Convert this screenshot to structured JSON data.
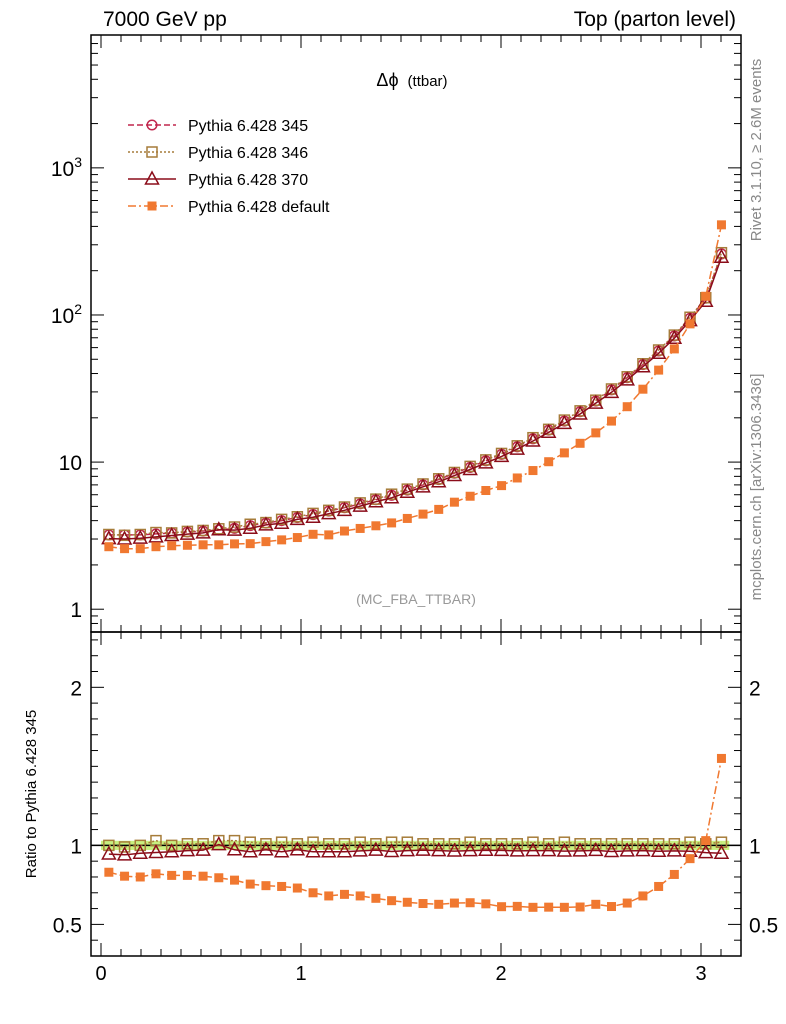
{
  "header": {
    "left": "7000 GeV pp",
    "right": "Top (parton level)"
  },
  "side_text": {
    "top": "Rivet 3.1.10, ≥ 2.6M events",
    "bottom": "mcplots.cern.ch [arXiv:1306.3436]"
  },
  "main_title": {
    "symbol": "Δϕ",
    "text": "(ttbar)"
  },
  "analysis_label": "(MC_FBA_TTBAR)",
  "ratio_ylabel": "Ratio to Pythia 6.428 345",
  "colors": {
    "s345": "#c1264d",
    "s346": "#a67c3a",
    "s370": "#8b0d1a",
    "default": "#f07830",
    "band": "#c8f080"
  },
  "chart_data": [
    {
      "type": "line",
      "log_y": true,
      "ylim": [
        0.7,
        8000
      ],
      "xlim": [
        -0.05,
        3.2
      ],
      "x_ticks": [
        0,
        1,
        2,
        3
      ],
      "y_tick_labels": [
        {
          "v": 1,
          "t": "1"
        },
        {
          "v": 10,
          "t": "10"
        },
        {
          "v": 100,
          "t": "10",
          "sup": "2"
        },
        {
          "v": 1000,
          "t": "10",
          "sup": "3"
        }
      ],
      "legend_position": "top-left",
      "x": [
        0.0393,
        0.1178,
        0.1963,
        0.2749,
        0.3534,
        0.432,
        0.5105,
        0.589,
        0.6676,
        0.7461,
        0.8247,
        0.9032,
        0.9817,
        1.0603,
        1.1388,
        1.2174,
        1.2959,
        1.3744,
        1.453,
        1.5315,
        1.6101,
        1.6886,
        1.7671,
        1.8457,
        1.9242,
        2.0028,
        2.0813,
        2.1598,
        2.2384,
        2.3169,
        2.3955,
        2.474,
        2.5525,
        2.6311,
        2.7096,
        2.7882,
        2.8667,
        2.9452,
        3.0238,
        3.1023
      ],
      "series": [
        {
          "name": "Pythia 6.428 345",
          "key": "s345",
          "marker": "circle",
          "dash": "6,3",
          "values": [
            3.2,
            3.2,
            3.2,
            3.25,
            3.3,
            3.35,
            3.4,
            3.45,
            3.55,
            3.7,
            3.85,
            4.0,
            4.2,
            4.4,
            4.65,
            4.9,
            5.2,
            5.55,
            5.95,
            6.45,
            7.0,
            7.6,
            8.4,
            9.2,
            10.2,
            11.3,
            12.7,
            14.4,
            16.5,
            19.0,
            22.0,
            26.0,
            31.0,
            37.5,
            46.0,
            57.0,
            72.0,
            95.0,
            130.0,
            260.0
          ]
        },
        {
          "name": "Pythia 6.428 346",
          "key": "s346",
          "marker": "square",
          "dash": "2,2",
          "values": [
            3.22,
            3.18,
            3.22,
            3.32,
            3.3,
            3.38,
            3.43,
            3.52,
            3.62,
            3.78,
            3.88,
            4.08,
            4.25,
            4.48,
            4.7,
            4.95,
            5.28,
            5.6,
            6.05,
            6.55,
            7.1,
            7.7,
            8.5,
            9.35,
            10.35,
            11.45,
            12.9,
            14.65,
            16.7,
            19.3,
            22.3,
            26.35,
            31.4,
            38.0,
            46.6,
            57.8,
            73.0,
            96.5,
            131.0,
            265.0
          ]
        },
        {
          "name": "Pythia 6.428 370",
          "key": "s370",
          "marker": "triangle",
          "dash": "",
          "values": [
            3.02,
            3.0,
            3.04,
            3.1,
            3.17,
            3.24,
            3.3,
            3.47,
            3.45,
            3.55,
            3.74,
            3.84,
            4.08,
            4.22,
            4.46,
            4.7,
            5.02,
            5.38,
            5.72,
            6.24,
            6.79,
            7.35,
            8.1,
            8.9,
            9.88,
            10.94,
            12.25,
            13.92,
            15.95,
            18.32,
            21.24,
            25.18,
            29.8,
            36.2,
            44.5,
            54.9,
            69.5,
            91.5,
            124.0,
            247.0
          ]
        },
        {
          "name": "Pythia 6.428 default",
          "key": "default",
          "marker": "filled-square",
          "dash": "8,3,2,3",
          "values": [
            2.66,
            2.58,
            2.58,
            2.66,
            2.7,
            2.72,
            2.74,
            2.74,
            2.78,
            2.79,
            2.88,
            2.96,
            3.07,
            3.23,
            3.2,
            3.4,
            3.54,
            3.69,
            3.86,
            4.14,
            4.43,
            4.77,
            5.34,
            5.86,
            6.41,
            6.92,
            7.8,
            8.76,
            10.06,
            11.55,
            13.42,
            15.8,
            19.0,
            23.8,
            31.3,
            42.2,
            58.8,
            87.0,
            134.0,
            410.0
          ]
        }
      ]
    },
    {
      "type": "line",
      "ylim": [
        0.3,
        2.35
      ],
      "y_ticks": [
        0.5,
        1,
        2
      ],
      "x_ticks": [
        0,
        1,
        2,
        3
      ],
      "reference_band": {
        "value": 1.0,
        "low": 0.99,
        "high": 1.01
      },
      "series": [
        {
          "name": "Pythia 6.428 346",
          "key": "s346",
          "marker": "square",
          "dash": "2,2",
          "values": [
            1.0,
            0.99,
            1.0,
            1.03,
            1.0,
            1.01,
            1.01,
            1.03,
            1.03,
            1.02,
            1.01,
            1.02,
            1.01,
            1.02,
            1.01,
            1.01,
            1.02,
            1.01,
            1.02,
            1.02,
            1.01,
            1.01,
            1.01,
            1.02,
            1.01,
            1.01,
            1.01,
            1.02,
            1.01,
            1.02,
            1.01,
            1.01,
            1.01,
            1.01,
            1.01,
            1.01,
            1.01,
            1.02,
            1.01,
            1.02
          ]
        },
        {
          "name": "Pythia 6.428 370",
          "key": "s370",
          "marker": "triangle",
          "dash": "",
          "values": [
            0.945,
            0.94,
            0.95,
            0.955,
            0.96,
            0.967,
            0.97,
            1.005,
            0.972,
            0.96,
            0.972,
            0.96,
            0.972,
            0.96,
            0.96,
            0.96,
            0.965,
            0.97,
            0.961,
            0.967,
            0.97,
            0.967,
            0.964,
            0.967,
            0.969,
            0.968,
            0.965,
            0.967,
            0.967,
            0.964,
            0.965,
            0.968,
            0.961,
            0.965,
            0.967,
            0.963,
            0.965,
            0.963,
            0.954,
            0.95
          ]
        },
        {
          "name": "Pythia 6.428 default",
          "key": "default",
          "marker": "filled-square",
          "dash": "8,3,2,3",
          "values": [
            0.83,
            0.805,
            0.8,
            0.82,
            0.81,
            0.81,
            0.805,
            0.795,
            0.78,
            0.755,
            0.745,
            0.74,
            0.73,
            0.7,
            0.68,
            0.69,
            0.68,
            0.665,
            0.65,
            0.64,
            0.632,
            0.627,
            0.635,
            0.637,
            0.63,
            0.612,
            0.614,
            0.608,
            0.609,
            0.608,
            0.61,
            0.627,
            0.613,
            0.635,
            0.68,
            0.74,
            0.816,
            0.916,
            1.03,
            1.55
          ]
        }
      ]
    }
  ]
}
